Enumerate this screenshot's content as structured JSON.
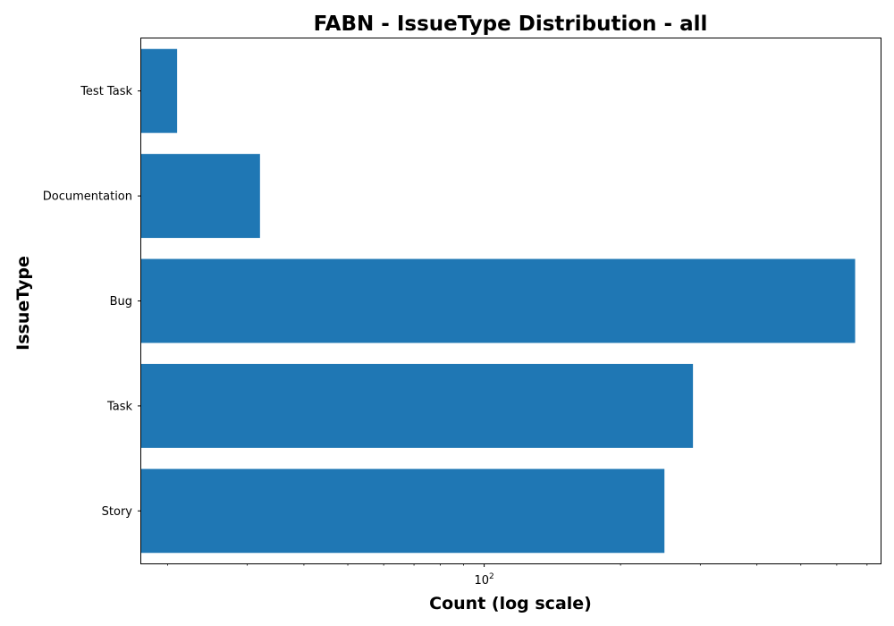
{
  "chart_data": {
    "type": "bar",
    "orientation": "horizontal",
    "title": "FABN - IssueType Distribution - all",
    "xlabel": "Count (log scale)",
    "ylabel": "IssueType",
    "x_scale": "log",
    "xlim": [
      17.5,
      750
    ],
    "x_tick_labels": [
      {
        "value": 100,
        "base": "10",
        "exponent": "2"
      }
    ],
    "categories": [
      "Story",
      "Task",
      "Bug",
      "Documentation",
      "Test Task"
    ],
    "values": [
      250,
      289,
      659,
      32,
      21
    ],
    "grid": false,
    "legend": "none",
    "bar_color": "#1f77b4"
  }
}
